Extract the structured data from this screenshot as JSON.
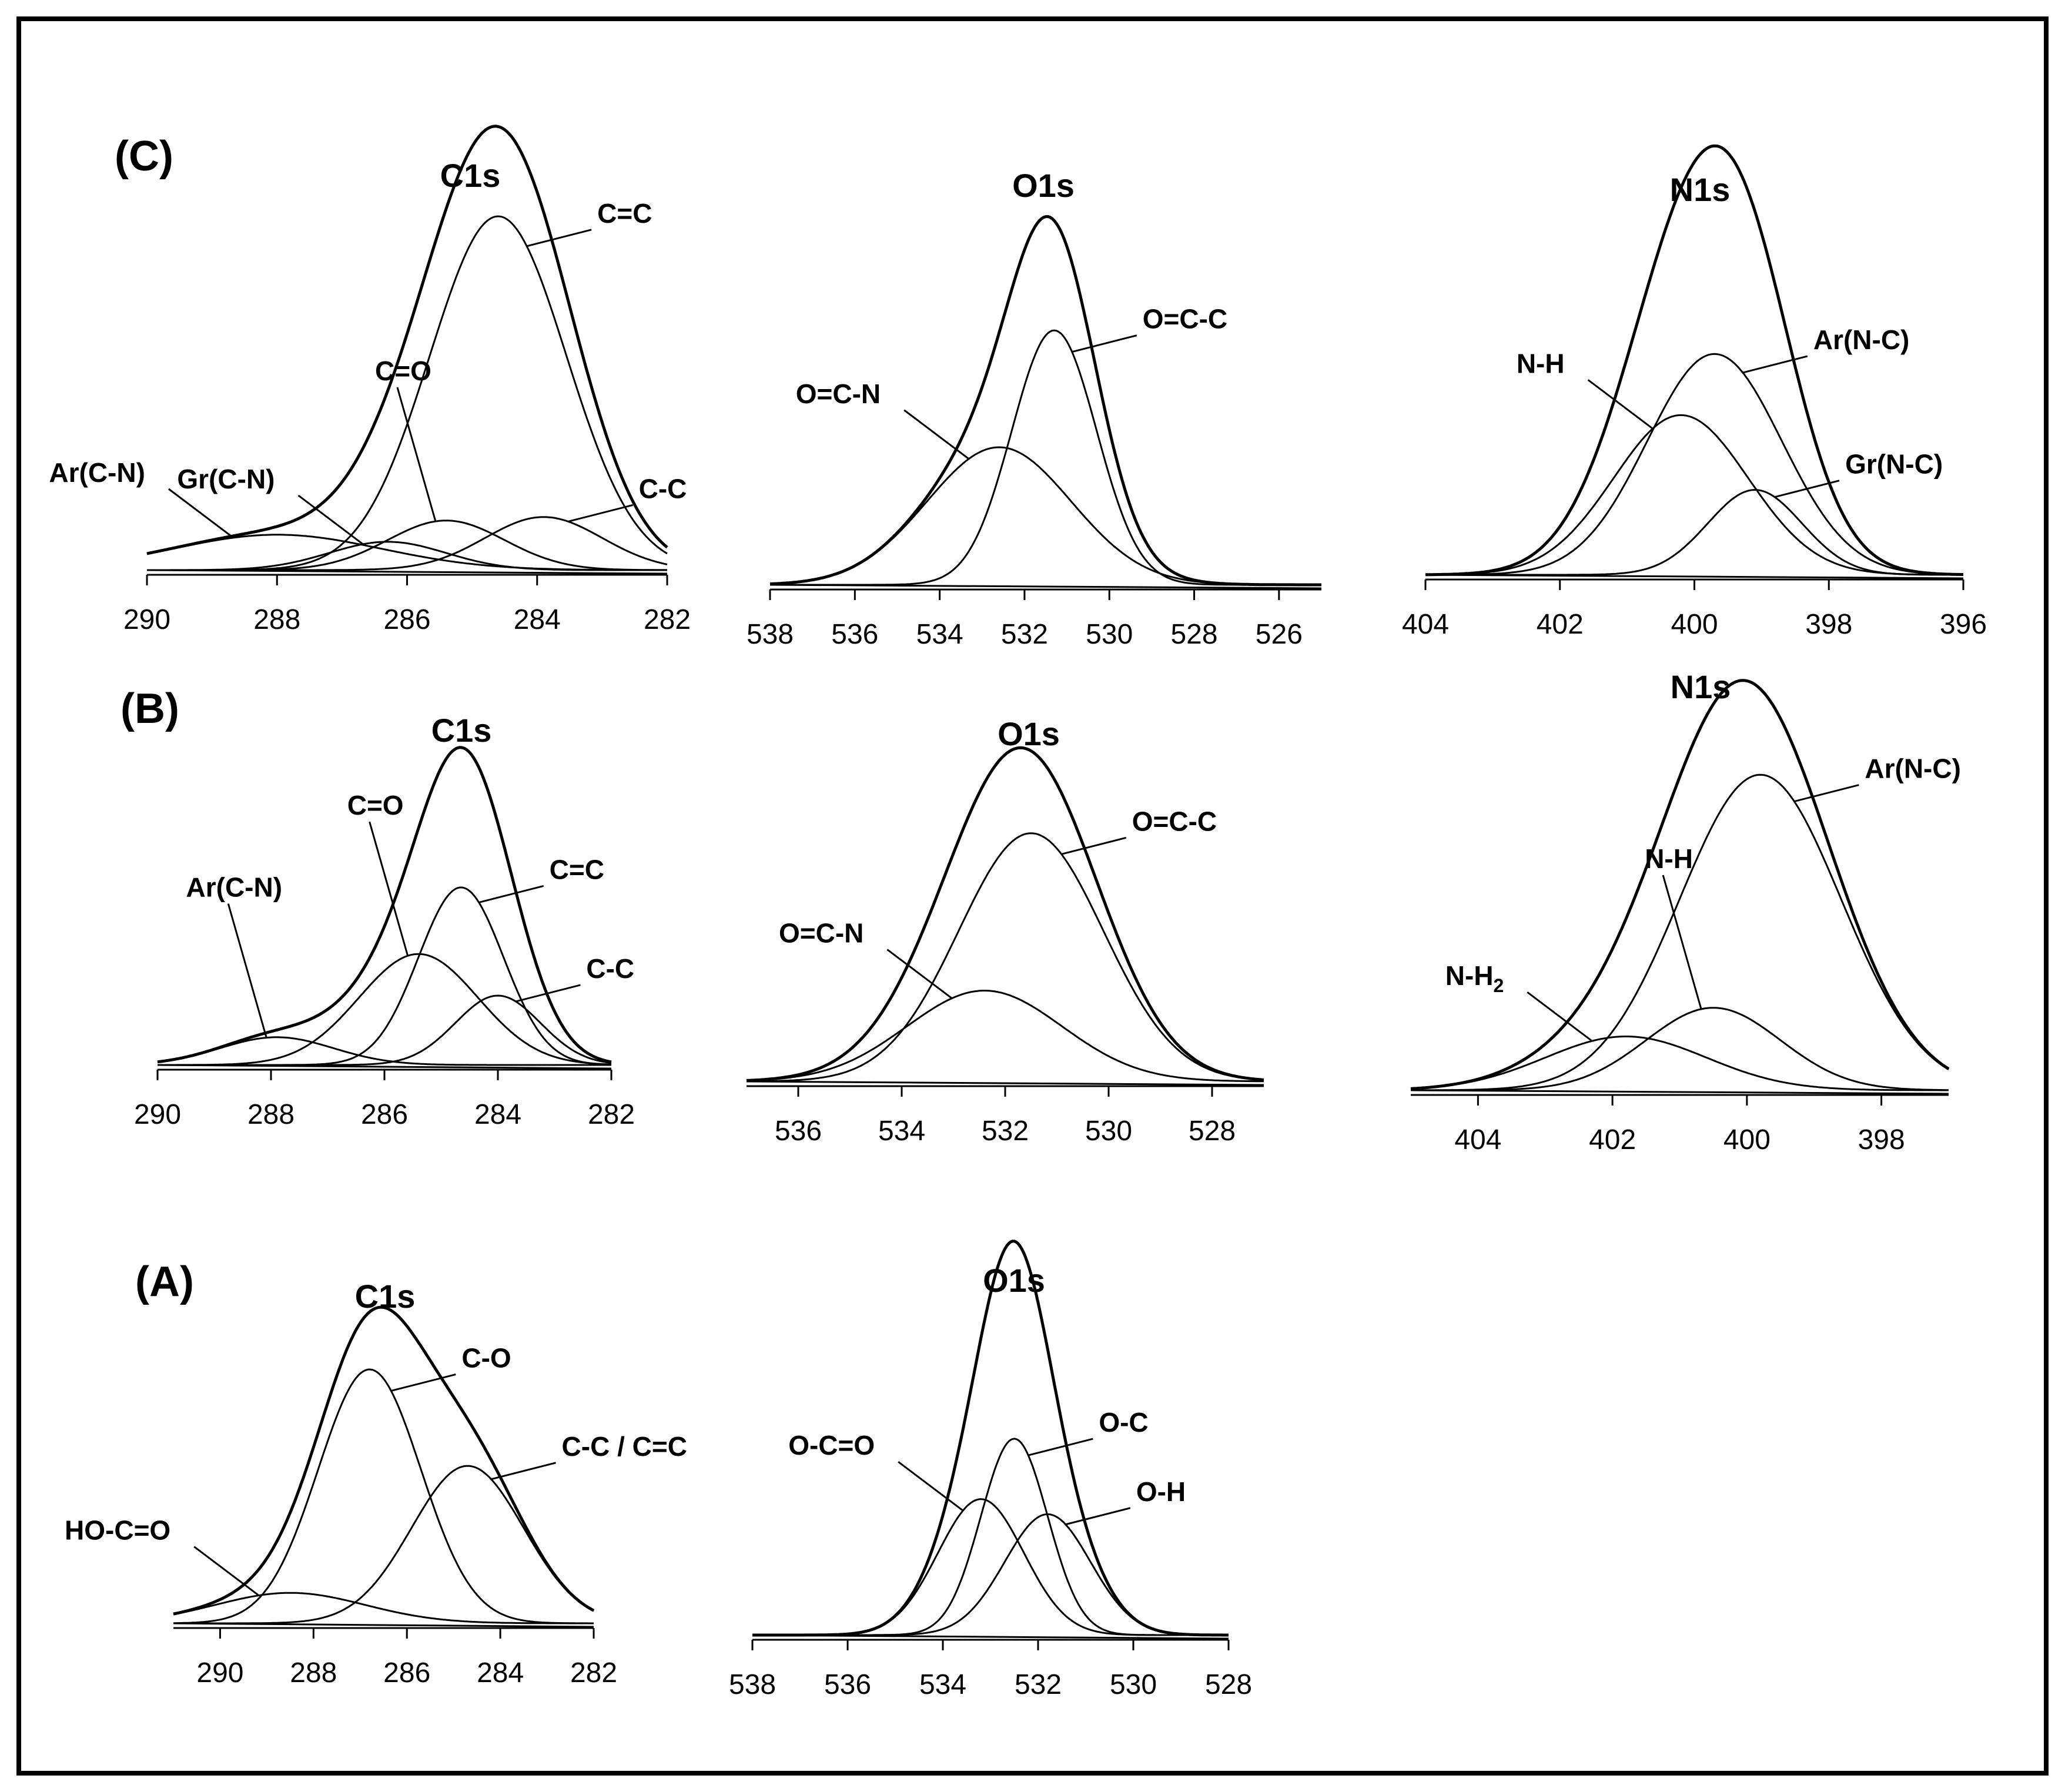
{
  "chart_data": [
    {
      "id": "C-C1s",
      "panel_label": "(C)",
      "type": "line",
      "title": "C1s",
      "xlabel": "",
      "ylabel": "",
      "xlim": [
        290,
        282
      ],
      "xticks": [
        290,
        288,
        286,
        284,
        282
      ],
      "peaks": [
        {
          "name": "C=C",
          "center": 284.6,
          "height": 1.0,
          "width": 1.05
        },
        {
          "name": "C-C",
          "center": 283.9,
          "height": 0.15,
          "width": 0.9
        },
        {
          "name": "C=O",
          "center": 285.4,
          "height": 0.14,
          "width": 0.9
        },
        {
          "name": "Gr(C-N)",
          "center": 286.3,
          "height": 0.08,
          "width": 0.9
        },
        {
          "name": "Ar(C-N)",
          "center": 288.0,
          "height": 0.1,
          "width": 1.6
        }
      ],
      "labels": [
        {
          "text": "C=C",
          "peak": "C=C",
          "anchor": "right"
        },
        {
          "text": "C-C",
          "peak": "C-C",
          "anchor": "right"
        },
        {
          "text": "C=O",
          "peak": "C=O",
          "anchor": "up"
        },
        {
          "text": "Gr(C-N)",
          "peak": "Gr(C-N)",
          "anchor": "left"
        },
        {
          "text": "Ar(C-N)",
          "peak": "Ar(C-N)",
          "anchor": "left"
        }
      ]
    },
    {
      "id": "C-O1s",
      "panel_label": "",
      "type": "line",
      "title": "O1s",
      "xlabel": "",
      "ylabel": "",
      "xlim": [
        538,
        525
      ],
      "xticks": [
        538,
        536,
        534,
        532,
        530,
        528,
        526
      ],
      "peaks": [
        {
          "name": "O=C-C",
          "center": 531.3,
          "height": 0.74,
          "width": 1.0
        },
        {
          "name": "O=C-N",
          "center": 532.6,
          "height": 0.4,
          "width": 1.7
        }
      ],
      "labels": [
        {
          "text": "O=C-C",
          "peak": "O=C-C",
          "anchor": "right"
        },
        {
          "text": "O=C-N",
          "peak": "O=C-N",
          "anchor": "left"
        }
      ]
    },
    {
      "id": "C-N1s",
      "panel_label": "",
      "type": "line",
      "title": "N1s",
      "xlabel": "",
      "ylabel": "",
      "xlim": [
        404,
        396
      ],
      "xticks": [
        404,
        402,
        400,
        398,
        396
      ],
      "peaks": [
        {
          "name": "Ar(N-C)",
          "center": 399.7,
          "height": 0.65,
          "width": 1.0
        },
        {
          "name": "N-H",
          "center": 400.2,
          "height": 0.47,
          "width": 1.0
        },
        {
          "name": "Gr(N-C)",
          "center": 399.1,
          "height": 0.25,
          "width": 0.7
        }
      ],
      "labels": [
        {
          "text": "Ar(N-C)",
          "peak": "Ar(N-C)",
          "anchor": "right"
        },
        {
          "text": "N-H",
          "peak": "N-H",
          "anchor": "left"
        },
        {
          "text": "Gr(N-C)",
          "peak": "Gr(N-C)",
          "anchor": "right"
        }
      ]
    },
    {
      "id": "B-C1s",
      "panel_label": "(B)",
      "type": "line",
      "title": "C1s",
      "xlabel": "",
      "ylabel": "",
      "xlim": [
        290,
        282
      ],
      "xticks": [
        290,
        288,
        286,
        284,
        282
      ],
      "peaks": [
        {
          "name": "C=C",
          "center": 284.65,
          "height": 0.64,
          "width": 0.75
        },
        {
          "name": "C=O",
          "center": 285.4,
          "height": 0.4,
          "width": 1.05
        },
        {
          "name": "C-C",
          "center": 284.0,
          "height": 0.25,
          "width": 0.75
        },
        {
          "name": "Ar(C-N)",
          "center": 287.9,
          "height": 0.1,
          "width": 1.0
        }
      ],
      "labels": [
        {
          "text": "C=C",
          "peak": "C=C",
          "anchor": "right"
        },
        {
          "text": "C=O",
          "peak": "C=O",
          "anchor": "up"
        },
        {
          "text": "C-C",
          "peak": "C-C",
          "anchor": "right"
        },
        {
          "text": "Ar(C-N)",
          "peak": "Ar(C-N)",
          "anchor": "up"
        }
      ]
    },
    {
      "id": "B-O1s",
      "panel_label": "",
      "type": "line",
      "title": "O1s",
      "xlabel": "",
      "ylabel": "",
      "xlim": [
        537,
        527
      ],
      "xticks": [
        536,
        534,
        532,
        530,
        528
      ],
      "peaks": [
        {
          "name": "O=C-C",
          "center": 531.5,
          "height": 0.82,
          "width": 1.4
        },
        {
          "name": "O=C-N",
          "center": 532.4,
          "height": 0.3,
          "width": 1.5
        }
      ],
      "labels": [
        {
          "text": "O=C-C",
          "peak": "O=C-C",
          "anchor": "right"
        },
        {
          "text": "O=C-N",
          "peak": "O=C-N",
          "anchor": "left"
        }
      ]
    },
    {
      "id": "B-N1s",
      "panel_label": "",
      "type": "line",
      "title": "N1s",
      "xlabel": "",
      "ylabel": "",
      "xlim": [
        405,
        397
      ],
      "xticks": [
        404,
        402,
        400,
        398
      ],
      "peaks": [
        {
          "name": "Ar(N-C)",
          "center": 399.8,
          "height": 0.88,
          "width": 1.2
        },
        {
          "name": "N-H",
          "center": 400.5,
          "height": 0.23,
          "width": 1.0
        },
        {
          "name": "N-H2",
          "center": 401.8,
          "height": 0.15,
          "width": 1.2
        }
      ],
      "labels": [
        {
          "text": "Ar(N-C)",
          "peak": "Ar(N-C)",
          "anchor": "right"
        },
        {
          "text": "N-H",
          "peak": "N-H",
          "anchor": "up"
        },
        {
          "text": "N-H",
          "sub": "2",
          "peak": "N-H2",
          "anchor": "left"
        }
      ]
    },
    {
      "id": "A-C1s",
      "panel_label": "(A)",
      "type": "line",
      "title": "C1s",
      "xlabel": "",
      "ylabel": "",
      "xlim": [
        291,
        282
      ],
      "xticks": [
        290,
        288,
        286,
        284,
        282
      ],
      "peaks": [
        {
          "name": "C-O",
          "center": 286.8,
          "height": 1.0,
          "width": 1.1
        },
        {
          "name": "C-C / C=C",
          "center": 284.7,
          "height": 0.62,
          "width": 1.2
        },
        {
          "name": "HO-C=O",
          "center": 288.5,
          "height": 0.12,
          "width": 1.6
        }
      ],
      "labels": [
        {
          "text": "C-O",
          "peak": "C-O",
          "anchor": "right"
        },
        {
          "text": "C-C / C=C",
          "peak": "C-C / C=C",
          "anchor": "right"
        },
        {
          "text": "HO-C=O",
          "peak": "HO-C=O",
          "anchor": "left"
        }
      ]
    },
    {
      "id": "A-O1s",
      "panel_label": "",
      "type": "line",
      "title": "O1s",
      "xlabel": "",
      "ylabel": "",
      "xlim": [
        538,
        528
      ],
      "xticks": [
        538,
        536,
        534,
        532,
        530,
        528
      ],
      "peaks": [
        {
          "name": "O-C",
          "center": 532.5,
          "height": 0.65,
          "width": 0.7
        },
        {
          "name": "O-C=O",
          "center": 533.2,
          "height": 0.45,
          "width": 0.9
        },
        {
          "name": "O-H",
          "center": 531.8,
          "height": 0.4,
          "width": 0.9
        }
      ],
      "labels": [
        {
          "text": "O-C",
          "peak": "O-C",
          "anchor": "right"
        },
        {
          "text": "O-C=O",
          "peak": "O-C=O",
          "anchor": "left"
        },
        {
          "text": "O-H",
          "peak": "O-H",
          "anchor": "right"
        }
      ]
    }
  ]
}
